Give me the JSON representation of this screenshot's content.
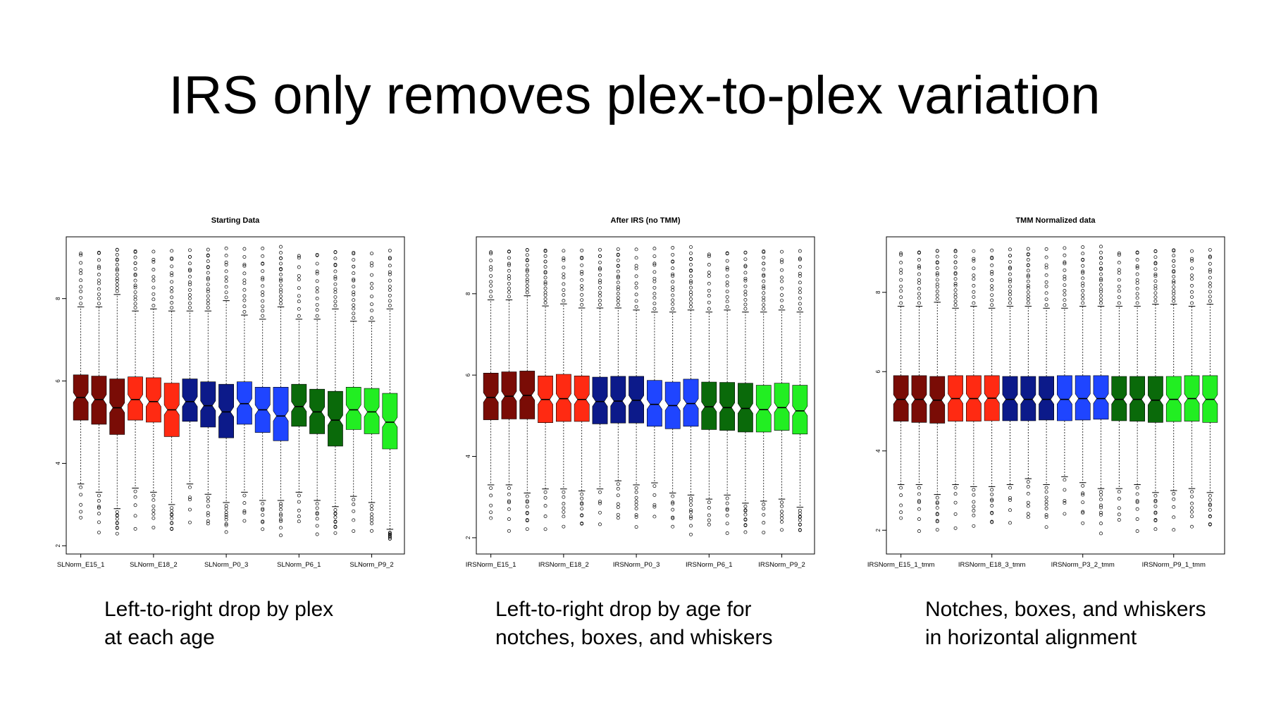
{
  "slide": {
    "title": "IRS only removes plex-to-plex variation"
  },
  "palette": [
    "#7a0c06",
    "#7a0c06",
    "#7a0c06",
    "#ff2a12",
    "#ff2a12",
    "#ff2a12",
    "#0c1a8a",
    "#0c1a8a",
    "#0c1a8a",
    "#1f45ff",
    "#1f45ff",
    "#1f45ff",
    "#0a6a0a",
    "#0a6a0a",
    "#0a6a0a",
    "#22ee22",
    "#22ee22",
    "#22ee22"
  ],
  "captions": [
    {
      "line1": "Left-to-right drop by plex",
      "line2": "at each age"
    },
    {
      "line1": "Left-to-right drop by age for",
      "line2": "notches, boxes, and whiskers"
    },
    {
      "line1": "Notches, boxes, and whiskers",
      "line2": "in horizontal alignment"
    }
  ],
  "chart_data": [
    {
      "type": "boxplot",
      "title": "Starting Data",
      "ylim": [
        1.8,
        9.5
      ],
      "yticks": [
        2,
        4,
        6,
        8
      ],
      "xtick_labels": [
        "SLNorm_E15_1",
        "SLNorm_E18_2",
        "SLNorm_P0_3",
        "SLNorm_P6_1",
        "SLNorm_P9_2"
      ],
      "xtick_positions": [
        1,
        5,
        9,
        13,
        17
      ],
      "boxes": [
        {
          "q1": 5.05,
          "median": 5.6,
          "q3": 6.15,
          "wlo": 3.5,
          "whi": 7.8
        },
        {
          "q1": 4.95,
          "median": 5.55,
          "q3": 6.12,
          "wlo": 3.3,
          "whi": 7.8
        },
        {
          "q1": 4.7,
          "median": 5.35,
          "q3": 6.05,
          "wlo": 2.9,
          "whi": 8.1
        },
        {
          "q1": 5.05,
          "median": 5.55,
          "q3": 6.1,
          "wlo": 3.4,
          "whi": 7.7
        },
        {
          "q1": 5.0,
          "median": 5.5,
          "q3": 6.08,
          "wlo": 3.3,
          "whi": 7.75
        },
        {
          "q1": 4.65,
          "median": 5.3,
          "q3": 5.95,
          "wlo": 3.0,
          "whi": 7.7
        },
        {
          "q1": 5.02,
          "median": 5.5,
          "q3": 6.05,
          "wlo": 3.5,
          "whi": 7.7
        },
        {
          "q1": 4.88,
          "median": 5.4,
          "q3": 5.98,
          "wlo": 3.25,
          "whi": 7.7
        },
        {
          "q1": 4.62,
          "median": 5.25,
          "q3": 5.92,
          "wlo": 3.05,
          "whi": 7.95
        },
        {
          "q1": 4.95,
          "median": 5.45,
          "q3": 5.98,
          "wlo": 3.3,
          "whi": 7.6
        },
        {
          "q1": 4.75,
          "median": 5.3,
          "q3": 5.85,
          "wlo": 3.1,
          "whi": 7.5
        },
        {
          "q1": 4.55,
          "median": 5.15,
          "q3": 5.85,
          "wlo": 3.1,
          "whi": 7.8
        },
        {
          "q1": 4.9,
          "median": 5.38,
          "q3": 5.92,
          "wlo": 3.3,
          "whi": 7.5
        },
        {
          "q1": 4.72,
          "median": 5.25,
          "q3": 5.8,
          "wlo": 3.1,
          "whi": 7.5
        },
        {
          "q1": 4.42,
          "median": 5.05,
          "q3": 5.75,
          "wlo": 2.95,
          "whi": 7.75
        },
        {
          "q1": 4.82,
          "median": 5.3,
          "q3": 5.85,
          "wlo": 3.2,
          "whi": 7.45
        },
        {
          "q1": 4.72,
          "median": 5.25,
          "q3": 5.82,
          "wlo": 3.05,
          "whi": 7.45
        },
        {
          "q1": 4.35,
          "median": 5.0,
          "q3": 5.7,
          "wlo": 2.4,
          "whi": 7.75
        }
      ]
    },
    {
      "type": "boxplot",
      "title": "After IRS (no TMM)",
      "ylim": [
        1.6,
        9.4
      ],
      "yticks": [
        2,
        4,
        6,
        8
      ],
      "xtick_labels": [
        "IRSNorm_E15_1",
        "IRSNorm_E18_2",
        "IRSNorm_P0_3",
        "IRSNorm_P6_1",
        "IRSNorm_P9_2"
      ],
      "xtick_positions": [
        1,
        5,
        9,
        13,
        17
      ],
      "boxes": [
        {
          "q1": 4.9,
          "median": 5.45,
          "q3": 6.05,
          "wlo": 3.3,
          "whi": 7.85
        },
        {
          "q1": 4.92,
          "median": 5.48,
          "q3": 6.08,
          "wlo": 3.3,
          "whi": 7.85
        },
        {
          "q1": 4.92,
          "median": 5.5,
          "q3": 6.1,
          "wlo": 3.1,
          "whi": 7.95
        },
        {
          "q1": 4.83,
          "median": 5.4,
          "q3": 5.98,
          "wlo": 3.2,
          "whi": 7.7
        },
        {
          "q1": 4.86,
          "median": 5.42,
          "q3": 6.02,
          "wlo": 3.2,
          "whi": 7.75
        },
        {
          "q1": 4.86,
          "median": 5.4,
          "q3": 5.98,
          "wlo": 3.15,
          "whi": 7.65
        },
        {
          "q1": 4.8,
          "median": 5.35,
          "q3": 5.95,
          "wlo": 3.2,
          "whi": 7.65
        },
        {
          "q1": 4.82,
          "median": 5.36,
          "q3": 5.97,
          "wlo": 3.4,
          "whi": 7.65
        },
        {
          "q1": 4.82,
          "median": 5.38,
          "q3": 5.97,
          "wlo": 3.3,
          "whi": 7.6
        },
        {
          "q1": 4.74,
          "median": 5.28,
          "q3": 5.87,
          "wlo": 3.35,
          "whi": 7.55
        },
        {
          "q1": 4.68,
          "median": 5.25,
          "q3": 5.83,
          "wlo": 3.1,
          "whi": 7.55
        },
        {
          "q1": 4.74,
          "median": 5.3,
          "q3": 5.9,
          "wlo": 3.05,
          "whi": 7.6
        },
        {
          "q1": 4.66,
          "median": 5.22,
          "q3": 5.83,
          "wlo": 2.95,
          "whi": 7.55
        },
        {
          "q1": 4.64,
          "median": 5.2,
          "q3": 5.82,
          "wlo": 3.05,
          "whi": 7.6
        },
        {
          "q1": 4.6,
          "median": 5.18,
          "q3": 5.8,
          "wlo": 2.85,
          "whi": 7.55
        },
        {
          "q1": 4.6,
          "median": 5.15,
          "q3": 5.75,
          "wlo": 2.9,
          "whi": 7.55
        },
        {
          "q1": 4.64,
          "median": 5.2,
          "q3": 5.8,
          "wlo": 2.95,
          "whi": 7.6
        },
        {
          "q1": 4.55,
          "median": 5.12,
          "q3": 5.75,
          "wlo": 2.75,
          "whi": 7.55
        }
      ]
    },
    {
      "type": "boxplot",
      "title": "TMM Normalized data",
      "ylim": [
        1.4,
        9.4
      ],
      "yticks": [
        2,
        4,
        6,
        8
      ],
      "xtick_labels": [
        "IRSNorm_E15_1_tmm",
        "IRSNorm_E18_3_tmm",
        "IRSNorm_P3_2_tmm",
        "IRSNorm_P9_1_tmm"
      ],
      "xtick_positions": [
        1,
        6,
        11,
        16
      ],
      "boxes": [
        {
          "q1": 4.75,
          "median": 5.3,
          "q3": 5.9,
          "wlo": 3.15,
          "whi": 7.65
        },
        {
          "q1": 4.72,
          "median": 5.3,
          "q3": 5.9,
          "wlo": 3.15,
          "whi": 7.65
        },
        {
          "q1": 4.7,
          "median": 5.28,
          "q3": 5.88,
          "wlo": 2.9,
          "whi": 7.75
        },
        {
          "q1": 4.75,
          "median": 5.32,
          "q3": 5.9,
          "wlo": 3.15,
          "whi": 7.6
        },
        {
          "q1": 4.75,
          "median": 5.32,
          "q3": 5.9,
          "wlo": 3.1,
          "whi": 7.65
        },
        {
          "q1": 4.76,
          "median": 5.33,
          "q3": 5.9,
          "wlo": 3.1,
          "whi": 7.6
        },
        {
          "q1": 4.76,
          "median": 5.3,
          "q3": 5.88,
          "wlo": 3.15,
          "whi": 7.65
        },
        {
          "q1": 4.76,
          "median": 5.3,
          "q3": 5.88,
          "wlo": 3.3,
          "whi": 7.65
        },
        {
          "q1": 4.78,
          "median": 5.3,
          "q3": 5.88,
          "wlo": 3.15,
          "whi": 7.6
        },
        {
          "q1": 4.76,
          "median": 5.3,
          "q3": 5.9,
          "wlo": 3.35,
          "whi": 7.6
        },
        {
          "q1": 4.78,
          "median": 5.32,
          "q3": 5.9,
          "wlo": 3.2,
          "whi": 7.65
        },
        {
          "q1": 4.8,
          "median": 5.32,
          "q3": 5.9,
          "wlo": 3.05,
          "whi": 7.65
        },
        {
          "q1": 4.76,
          "median": 5.3,
          "q3": 5.88,
          "wlo": 3.05,
          "whi": 7.65
        },
        {
          "q1": 4.75,
          "median": 5.3,
          "q3": 5.88,
          "wlo": 3.15,
          "whi": 7.65
        },
        {
          "q1": 4.72,
          "median": 5.28,
          "q3": 5.88,
          "wlo": 2.95,
          "whi": 7.7
        },
        {
          "q1": 4.74,
          "median": 5.3,
          "q3": 5.88,
          "wlo": 3.0,
          "whi": 7.7
        },
        {
          "q1": 4.75,
          "median": 5.32,
          "q3": 5.9,
          "wlo": 3.05,
          "whi": 7.65
        },
        {
          "q1": 4.72,
          "median": 5.3,
          "q3": 5.9,
          "wlo": 2.95,
          "whi": 7.7
        }
      ]
    }
  ]
}
